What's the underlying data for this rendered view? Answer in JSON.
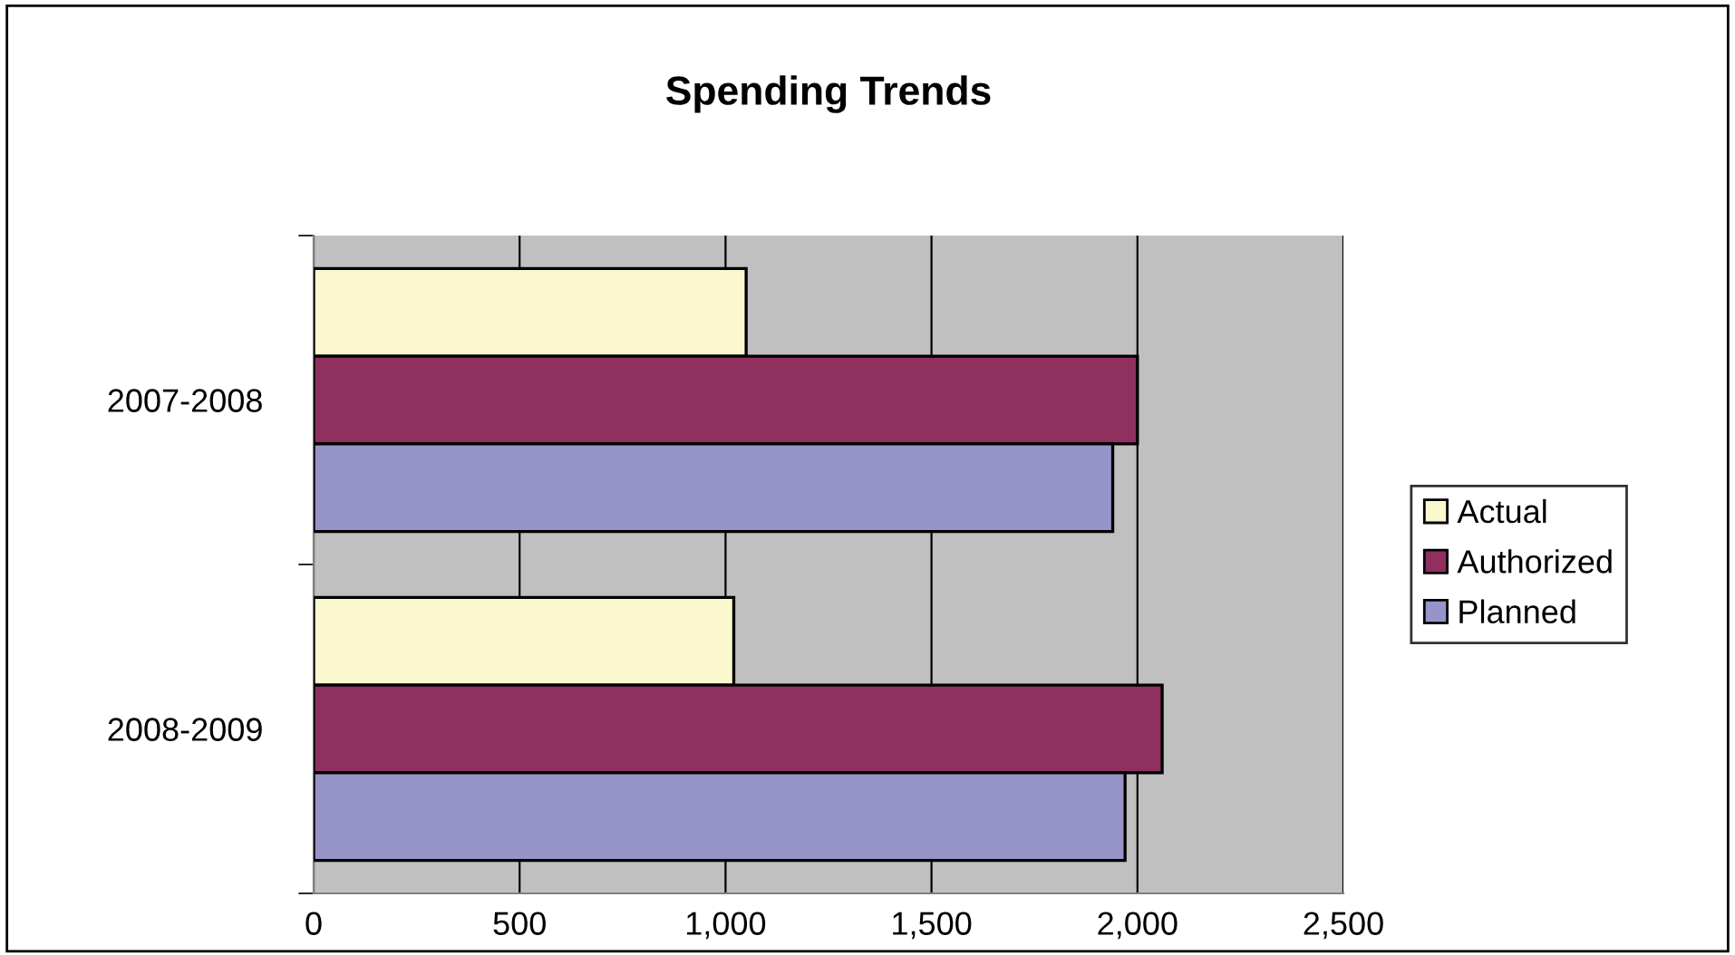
{
  "chart_data": {
    "type": "bar",
    "orientation": "horizontal",
    "title": "Spending Trends",
    "categories": [
      "2007-2008",
      "2008-2009"
    ],
    "series": [
      {
        "name": "Actual",
        "color": "#fbf7cf",
        "values": [
          1050,
          1020
        ]
      },
      {
        "name": "Authorized",
        "color": "#8f305f",
        "values": [
          2000,
          2060
        ]
      },
      {
        "name": "Planned",
        "color": "#9694c8",
        "values": [
          1940,
          1970
        ]
      }
    ],
    "xlim": [
      0,
      2500
    ],
    "xticks": [
      {
        "value": 0,
        "label": "0"
      },
      {
        "value": 500,
        "label": "500"
      },
      {
        "value": 1000,
        "label": "1,000"
      },
      {
        "value": 1500,
        "label": "1,500"
      },
      {
        "value": 2000,
        "label": "2,000"
      },
      {
        "value": 2500,
        "label": "2,500"
      }
    ],
    "grid": "x",
    "legend": "right"
  }
}
